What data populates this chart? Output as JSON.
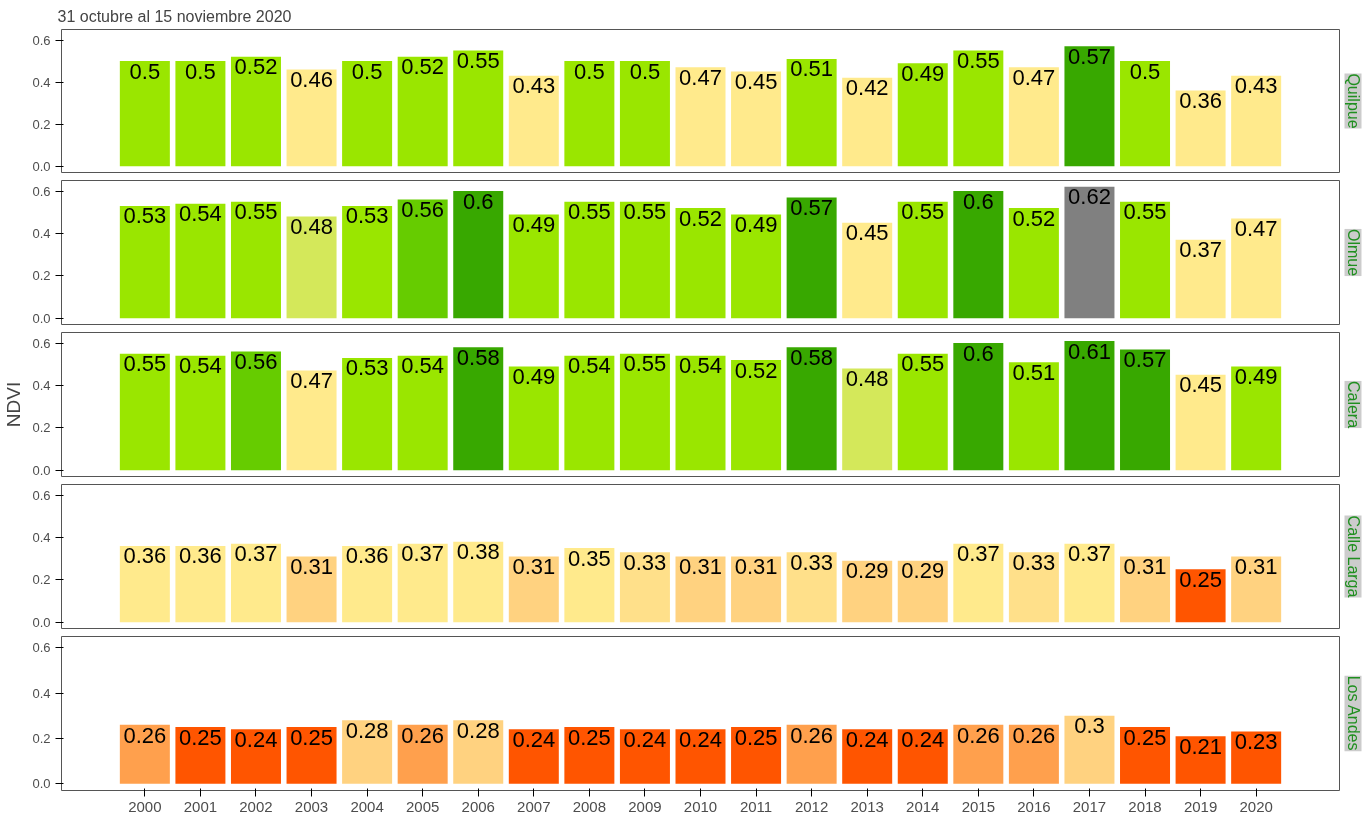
{
  "chart_data": [
    {
      "type": "bar",
      "title": "31 octubre al 15 noviembre 2020",
      "y2label": "Quilpue",
      "categories": [
        "2000",
        "2001",
        "2002",
        "2003",
        "2004",
        "2005",
        "2006",
        "2007",
        "2008",
        "2009",
        "2010",
        "2011",
        "2012",
        "2013",
        "2014",
        "2015",
        "2016",
        "2017",
        "2018",
        "2019",
        "2020"
      ],
      "values": [
        0.5,
        0.5,
        0.52,
        0.46,
        0.5,
        0.52,
        0.55,
        0.43,
        0.5,
        0.5,
        0.47,
        0.45,
        0.51,
        0.42,
        0.49,
        0.55,
        0.47,
        0.57,
        0.5,
        0.36,
        0.43
      ],
      "colors": [
        "#9ae600",
        "#9ae600",
        "#9ae600",
        "#ffea8c",
        "#9ae600",
        "#9ae600",
        "#9ae600",
        "#ffea8c",
        "#9ae600",
        "#9ae600",
        "#ffea8c",
        "#ffea8c",
        "#9ae600",
        "#ffea8c",
        "#9ae600",
        "#9ae600",
        "#ffea8c",
        "#38a800",
        "#9ae600",
        "#ffea8c",
        "#ffea8c"
      ],
      "data_labels": true,
      "ylim": [
        -0.03,
        0.65
      ],
      "yticks": [
        {
          "value": 0,
          "label": "0.0"
        },
        {
          "value": 0.2,
          "label": "0.2"
        },
        {
          "value": 0.4,
          "label": "0.4"
        },
        {
          "value": 0.6,
          "label": "0.6"
        }
      ],
      "tick_labels": "y"
    },
    {
      "type": "bar",
      "y2label": "Olmue",
      "categories": [
        "2000",
        "2001",
        "2002",
        "2003",
        "2004",
        "2005",
        "2006",
        "2007",
        "2008",
        "2009",
        "2010",
        "2011",
        "2012",
        "2013",
        "2014",
        "2015",
        "2016",
        "2017",
        "2018",
        "2019",
        "2020"
      ],
      "values": [
        0.53,
        0.54,
        0.55,
        0.48,
        0.53,
        0.56,
        0.6,
        0.49,
        0.55,
        0.55,
        0.52,
        0.49,
        0.57,
        0.45,
        0.55,
        0.6,
        0.52,
        0.62,
        0.55,
        0.37,
        0.47
      ],
      "colors": [
        "#9ae600",
        "#9ae600",
        "#9ae600",
        "#d4e85a",
        "#9ae600",
        "#66cc00",
        "#38a800",
        "#9ae600",
        "#9ae600",
        "#9ae600",
        "#9ae600",
        "#9ae600",
        "#38a800",
        "#ffea8c",
        "#9ae600",
        "#38a800",
        "#9ae600",
        "#808080",
        "#9ae600",
        "#ffea8c",
        "#ffea8c"
      ],
      "data_labels": true,
      "ylim": [
        -0.03,
        0.65
      ],
      "yticks": [
        {
          "value": 0,
          "label": "0.0"
        },
        {
          "value": 0.2,
          "label": "0.2"
        },
        {
          "value": 0.4,
          "label": "0.4"
        },
        {
          "value": 0.6,
          "label": "0.6"
        }
      ],
      "tick_labels": "y"
    },
    {
      "type": "bar",
      "y2label": "Calera",
      "ylabel": "NDVI",
      "categories": [
        "2000",
        "2001",
        "2002",
        "2003",
        "2004",
        "2005",
        "2006",
        "2007",
        "2008",
        "2009",
        "2010",
        "2011",
        "2012",
        "2013",
        "2014",
        "2015",
        "2016",
        "2017",
        "2018",
        "2019",
        "2020"
      ],
      "values": [
        0.55,
        0.54,
        0.56,
        0.47,
        0.53,
        0.54,
        0.58,
        0.49,
        0.54,
        0.55,
        0.54,
        0.52,
        0.58,
        0.48,
        0.55,
        0.6,
        0.51,
        0.61,
        0.57,
        0.45,
        0.49
      ],
      "colors": [
        "#9ae600",
        "#9ae600",
        "#66cc00",
        "#ffea8c",
        "#9ae600",
        "#9ae600",
        "#38a800",
        "#9ae600",
        "#9ae600",
        "#9ae600",
        "#9ae600",
        "#9ae600",
        "#38a800",
        "#d4e85a",
        "#9ae600",
        "#38a800",
        "#9ae600",
        "#38a800",
        "#38a800",
        "#ffea8c",
        "#9ae600"
      ],
      "data_labels": true,
      "ylim": [
        -0.03,
        0.65
      ],
      "yticks": [
        {
          "value": 0,
          "label": "0.0"
        },
        {
          "value": 0.2,
          "label": "0.2"
        },
        {
          "value": 0.4,
          "label": "0.4"
        },
        {
          "value": 0.6,
          "label": "0.6"
        }
      ],
      "tick_labels": "y"
    },
    {
      "type": "bar",
      "y2label": "Calle Larga",
      "categories": [
        "2000",
        "2001",
        "2002",
        "2003",
        "2004",
        "2005",
        "2006",
        "2007",
        "2008",
        "2009",
        "2010",
        "2011",
        "2012",
        "2013",
        "2014",
        "2015",
        "2016",
        "2017",
        "2018",
        "2019",
        "2020"
      ],
      "values": [
        0.36,
        0.36,
        0.37,
        0.31,
        0.36,
        0.37,
        0.38,
        0.31,
        0.35,
        0.33,
        0.31,
        0.31,
        0.33,
        0.29,
        0.29,
        0.37,
        0.33,
        0.37,
        0.31,
        0.25,
        0.31
      ],
      "colors": [
        "#ffea8c",
        "#ffea8c",
        "#ffea8c",
        "#ffd280",
        "#ffea8c",
        "#ffea8c",
        "#ffea8c",
        "#ffd280",
        "#ffea8c",
        "#ffe08a",
        "#ffd280",
        "#ffd280",
        "#ffe08a",
        "#ffd280",
        "#ffd280",
        "#ffea8c",
        "#ffe08a",
        "#ffea8c",
        "#ffd280",
        "#ff5500",
        "#ffd280"
      ],
      "data_labels": true,
      "ylim": [
        -0.03,
        0.65
      ],
      "yticks": [
        {
          "value": 0,
          "label": "0.0"
        },
        {
          "value": 0.2,
          "label": "0.2"
        },
        {
          "value": 0.4,
          "label": "0.4"
        },
        {
          "value": 0.6,
          "label": "0.6"
        }
      ],
      "tick_labels": "y"
    },
    {
      "type": "bar",
      "y2label": "Los Andes",
      "categories": [
        "2000",
        "2001",
        "2002",
        "2003",
        "2004",
        "2005",
        "2006",
        "2007",
        "2008",
        "2009",
        "2010",
        "2011",
        "2012",
        "2013",
        "2014",
        "2015",
        "2016",
        "2017",
        "2018",
        "2019",
        "2020"
      ],
      "values": [
        0.26,
        0.25,
        0.24,
        0.25,
        0.28,
        0.26,
        0.28,
        0.24,
        0.25,
        0.24,
        0.24,
        0.25,
        0.26,
        0.24,
        0.24,
        0.26,
        0.26,
        0.3,
        0.25,
        0.21,
        0.23
      ],
      "colors": [
        "#ffa04d",
        "#ff5500",
        "#ff5500",
        "#ff5500",
        "#ffd280",
        "#ffa04d",
        "#ffd280",
        "#ff5500",
        "#ff5500",
        "#ff5500",
        "#ff5500",
        "#ff5500",
        "#ffa04d",
        "#ff5500",
        "#ff5500",
        "#ffa04d",
        "#ffa04d",
        "#ffd280",
        "#ff5500",
        "#ff5500",
        "#ff5500"
      ],
      "data_labels": true,
      "ylim": [
        -0.03,
        0.65
      ],
      "yticks": [
        {
          "value": 0,
          "label": "0.0"
        },
        {
          "value": 0.2,
          "label": "0.2"
        },
        {
          "value": 0.4,
          "label": "0.4"
        },
        {
          "value": 0.6,
          "label": "0.6"
        }
      ]
    }
  ]
}
